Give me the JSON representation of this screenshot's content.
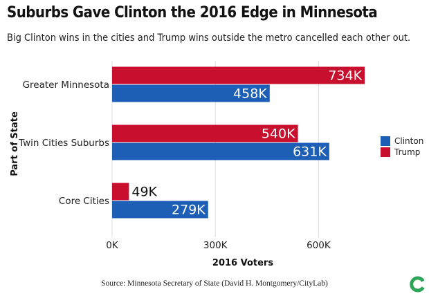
{
  "title": "Suburbs Gave Clinton the 2016 Edge in Minnesota",
  "subtitle": "Big Clinton wins in the cities and Trump wins outside the metro cancelled each other out.",
  "source": "Source: Minnesota Secretary of State (David H. Montgomery/CityLab)",
  "logo_icon": "citylab-logo-icon",
  "colors": {
    "clinton": "#1d5fb4",
    "trump": "#c8102e",
    "logo": "#2ea65a"
  },
  "chart_data": {
    "type": "bar",
    "orientation": "horizontal",
    "title": "Suburbs Gave Clinton the 2016 Edge in Minnesota",
    "xlabel": "2016 Voters",
    "ylabel": "Part of State",
    "xlim": [
      0,
      760000
    ],
    "xticks": [
      0,
      300000,
      600000
    ],
    "xtick_labels": [
      "0K",
      "300K",
      "600K"
    ],
    "grid": "vertical",
    "legend": "right",
    "categories": [
      "Greater Minnesota",
      "Twin Cities Suburbs",
      "Core Cities"
    ],
    "series": [
      {
        "name": "Trump",
        "color": "#c8102e",
        "values": [
          734000,
          540000,
          49000
        ],
        "labels": [
          "734K",
          "540K",
          "49K"
        ]
      },
      {
        "name": "Clinton",
        "color": "#1d5fb4",
        "values": [
          458000,
          631000,
          279000
        ],
        "labels": [
          "458K",
          "631K",
          "279K"
        ]
      }
    ]
  }
}
